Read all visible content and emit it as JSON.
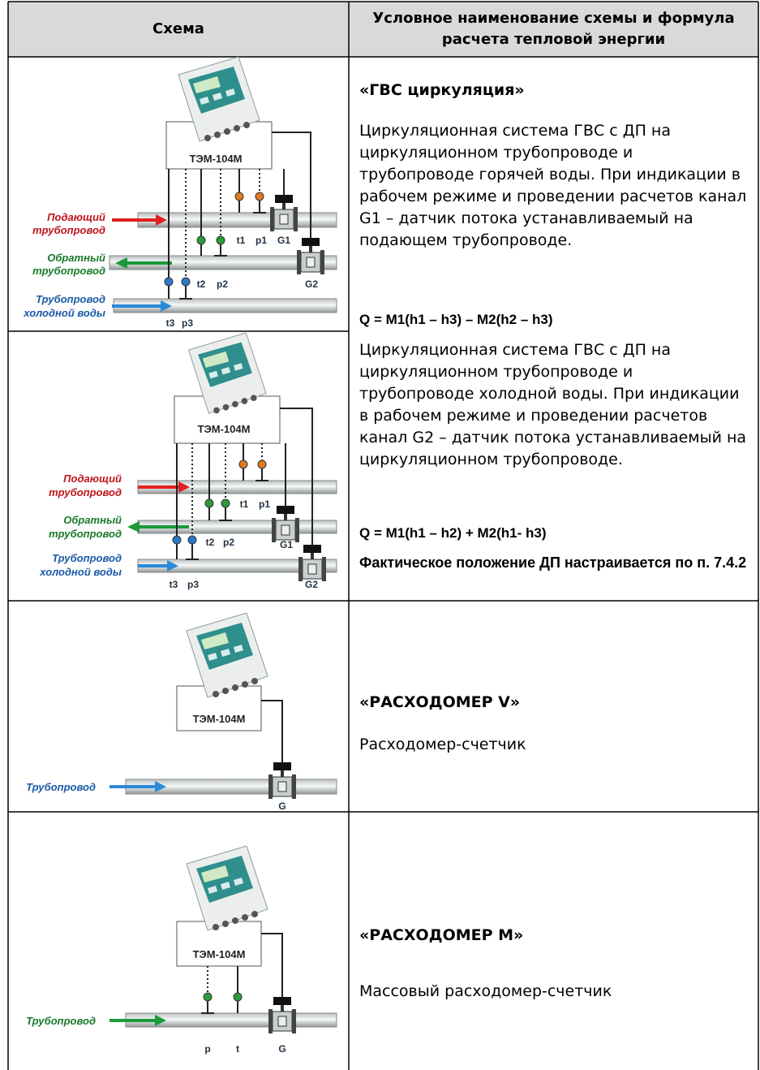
{
  "table": {
    "headers": [
      "Схема",
      "Условное наименование схемы и формула расчета тепловой энергии"
    ],
    "rows": [
      {
        "diagrams": [
          {
            "device": "ТЭМ-104М",
            "pipe_labels": [
              "Подающий",
              "трубопровод",
              "Обратный",
              "трубопровод",
              "Трубопровод",
              "холодной воды"
            ],
            "sensor_labels": [
              "t1",
              "p1",
              "G1",
              "t2",
              "p2",
              "G2",
              "t3",
              "p3"
            ]
          },
          {
            "device": "ТЭМ-104М",
            "pipe_labels": [
              "Подающий",
              "трубопровод",
              "Обратный",
              "трубопровод",
              "Трубопровод",
              "холодной воды"
            ],
            "sensor_labels": [
              "t1",
              "p1",
              "G1",
              "t2",
              "p2",
              "G2",
              "t3",
              "p3"
            ]
          }
        ],
        "title": "«ГВС циркуляция»",
        "variants": [
          {
            "description": "Циркуляционная система ГВС с ДП на циркуляционном трубопроводе и трубопроводе горячей воды. При индикации в рабочем режиме и проведении расчетов канал G1 – датчик потока устанавливаемый на подающем трубопроводе.",
            "formula": "Q = M1(h1 – h3) – M2(h2 – h3)"
          },
          {
            "description": "Циркуляционная система ГВС с ДП на циркуляционном трубопроводе и трубопроводе холодной воды. При индикации в рабочем режиме и проведении расчетов канал G2 – датчик потока устанавливаемый на циркуляционном трубопроводе.",
            "formula": "Q = M1(h1 – h2) + M2(h1- h3)",
            "note": "Фактическое положение ДП настраивается по  п. 7.4.2"
          }
        ]
      },
      {
        "diagrams": [
          {
            "device": "ТЭМ-104М",
            "pipe_labels": [
              "Трубопровод"
            ],
            "sensor_labels": [
              "G"
            ]
          }
        ],
        "title": "«РАСХОДОМЕР V»",
        "description": "Расходомер-счетчик"
      },
      {
        "diagrams": [
          {
            "device": "ТЭМ-104М",
            "pipe_labels": [
              "Трубопровод"
            ],
            "sensor_labels": [
              "p",
              "t",
              "G"
            ]
          }
        ],
        "title": "«РАСХОДОМЕР М»",
        "description": "Массовый расходомер-счетчик"
      }
    ]
  }
}
